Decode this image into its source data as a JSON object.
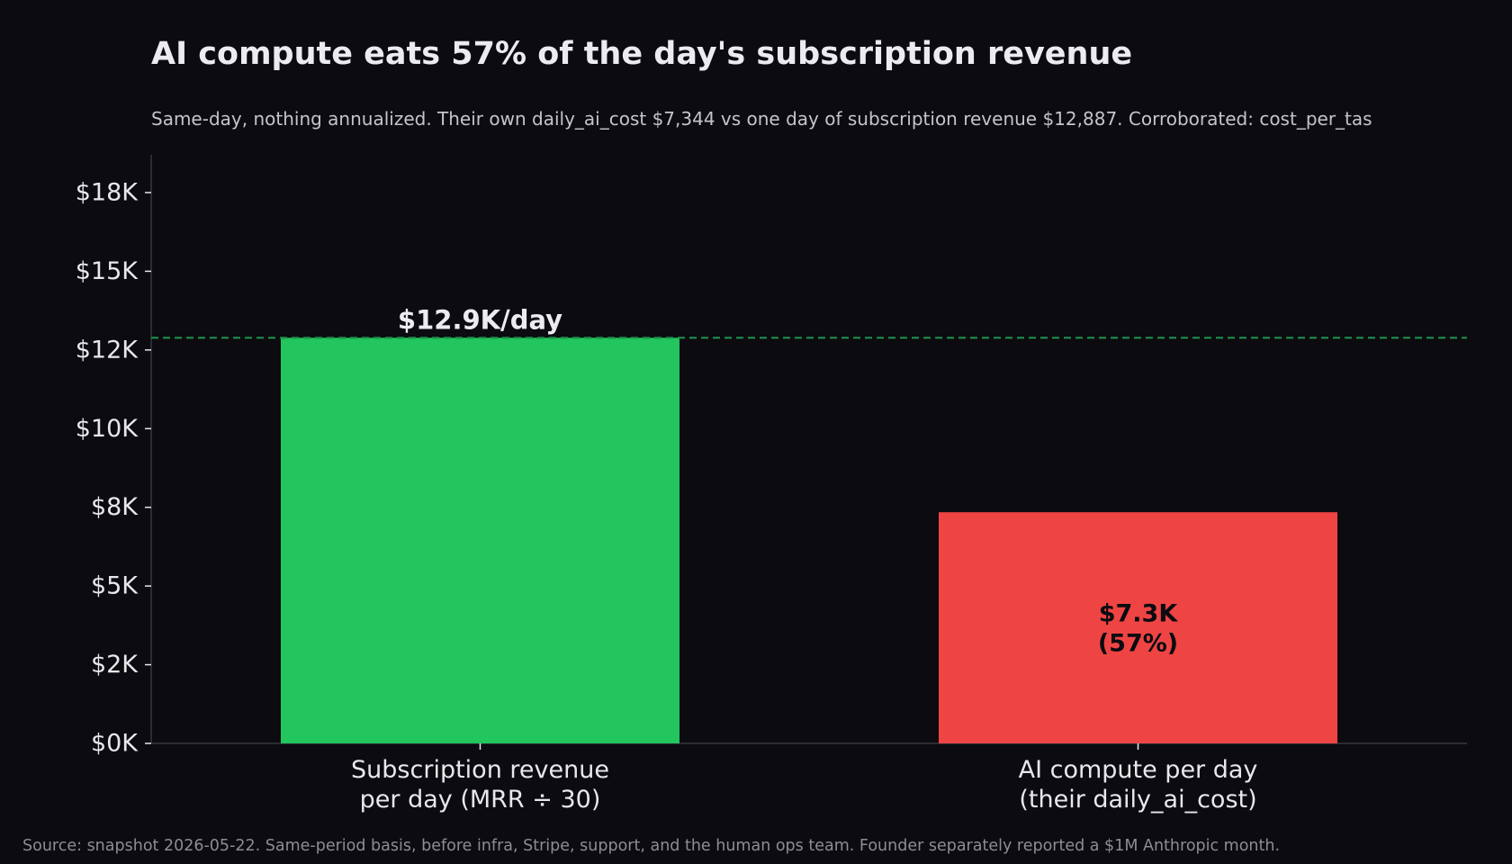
{
  "chart_data": {
    "type": "bar",
    "title": "AI compute eats 57% of the day's subscription revenue",
    "subtitle": "Same-day, nothing annualized. Their own daily_ai_cost $7,344 vs one day of subscription revenue $12,887. Corroborated: cost_per_tas",
    "source": "Source: snapshot 2026-05-22. Same-period basis, before infra, Stripe, support, and the human ops team. Founder separately reported a $1M Anthropic month.",
    "categories": [
      [
        "Subscription revenue",
        "per day (MRR ÷ 30)"
      ],
      [
        "AI compute per day",
        "(their daily_ai_cost)"
      ]
    ],
    "values": [
      12887,
      7344
    ],
    "colors": [
      "#22c55e",
      "#ef4444"
    ],
    "data_labels": [
      [
        "$12.9K/day"
      ],
      [
        "$7.3K",
        "(57%)"
      ]
    ],
    "reference_line": {
      "value": 12887,
      "style": "dashed",
      "color": "#1f8f4a"
    },
    "yticks": [
      0,
      2500,
      5000,
      7500,
      10000,
      12500,
      15000,
      17500
    ],
    "ytick_labels": [
      "$0K",
      "$2K",
      "$5K",
      "$8K",
      "$10K",
      "$12K",
      "$15K",
      "$18K"
    ],
    "ylim": [
      0,
      18700
    ],
    "xlabel": "",
    "ylabel": "",
    "grid": false,
    "background": "#0b0b10"
  }
}
